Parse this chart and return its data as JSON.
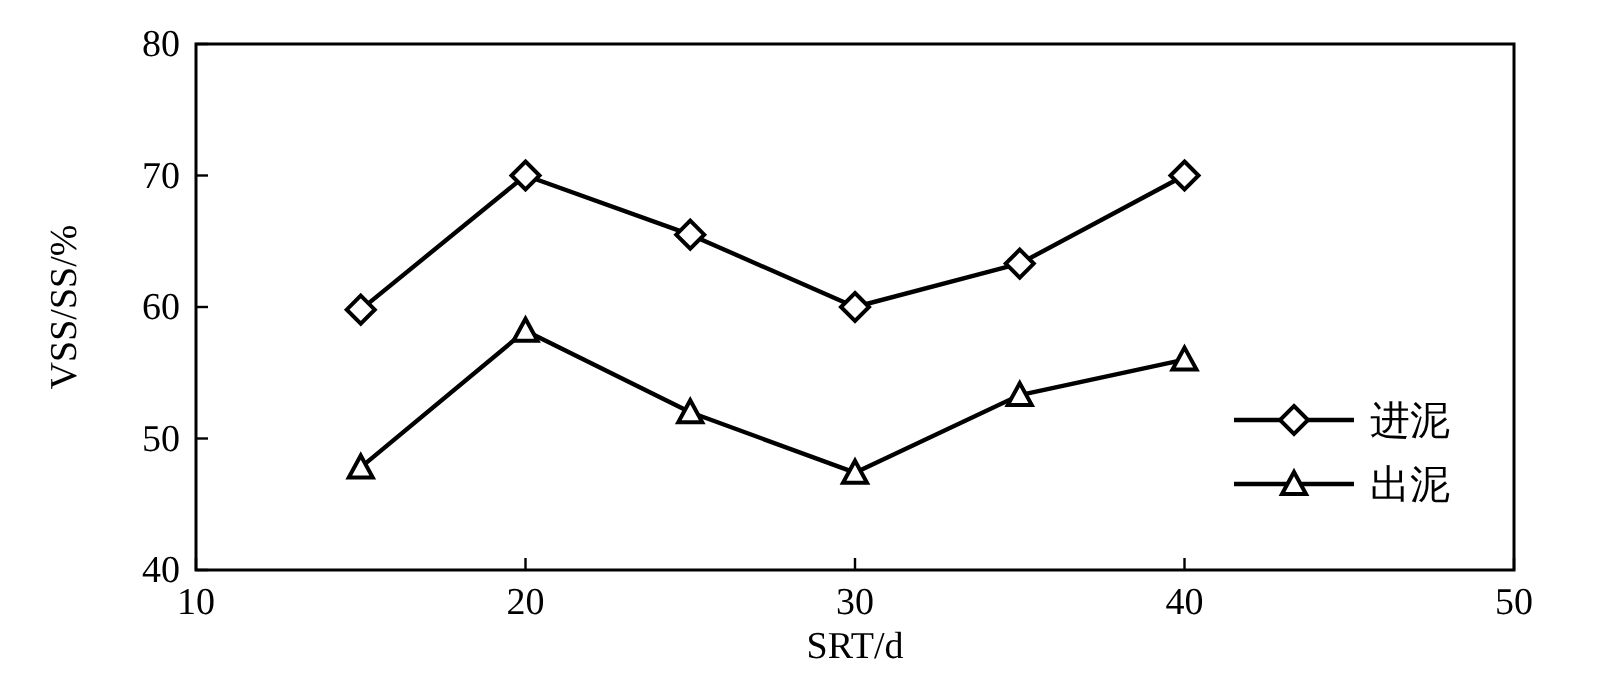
{
  "chart_data": {
    "type": "line",
    "xlabel": "SRT/d",
    "ylabel": "VSS/SS/%",
    "xlim": [
      10,
      50
    ],
    "xticks": [
      10,
      20,
      30,
      40,
      50
    ],
    "ylim": [
      40,
      80
    ],
    "yticks": [
      40,
      50,
      60,
      70,
      80
    ],
    "legend": "bottom right",
    "grid": false,
    "line_style": "solid",
    "series": [
      {
        "name": "进泥",
        "color": "#000000",
        "marker": "diamond",
        "x": [
          15,
          20,
          25,
          30,
          35,
          40
        ],
        "values": [
          59.8,
          70,
          65.5,
          60,
          63.3,
          70
        ]
      },
      {
        "name": "出泥",
        "color": "#000000",
        "marker": "triangle",
        "x": [
          15,
          20,
          25,
          30,
          35,
          40
        ],
        "values": [
          47.8,
          58.2,
          52,
          47.4,
          53.3,
          56
        ]
      }
    ]
  }
}
